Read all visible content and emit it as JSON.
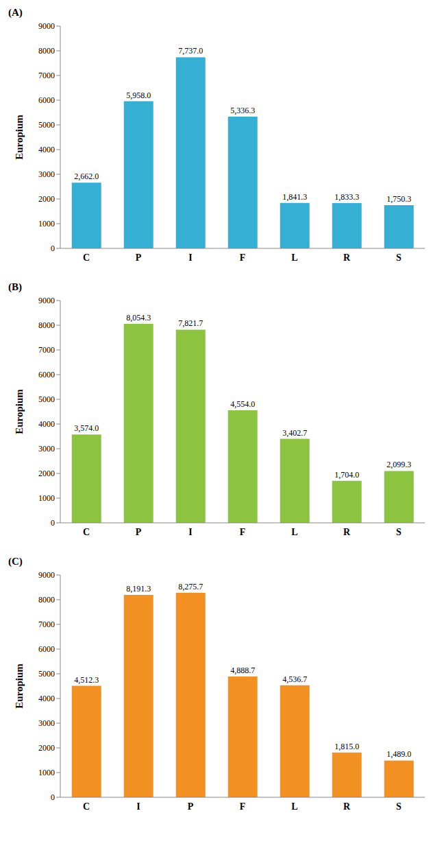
{
  "chart_data": [
    {
      "type": "bar",
      "title": "(A)",
      "y_label": "Europium",
      "categories": [
        "C",
        "P",
        "I",
        "F",
        "L",
        "R",
        "S"
      ],
      "values": [
        2662.0,
        5958.0,
        7737.0,
        5336.3,
        1841.3,
        1833.3,
        1750.3
      ],
      "value_labels": [
        "2,662.0",
        "5,958.0",
        "7,737.0",
        "5,336.3",
        "1,841.3",
        "1,833.3",
        "1,750.3"
      ],
      "color": "#35afd3",
      "ylim": [
        0,
        9000
      ],
      "yticks": [
        0,
        1000,
        2000,
        3000,
        4000,
        5000,
        6000,
        7000,
        8000,
        9000
      ],
      "grid": false,
      "data_labels": true
    },
    {
      "type": "bar",
      "title": "(B)",
      "y_label": "Europium",
      "categories": [
        "C",
        "P",
        "I",
        "F",
        "L",
        "R",
        "S"
      ],
      "values": [
        3574.0,
        8054.3,
        7821.7,
        4554.0,
        3402.7,
        1704.0,
        2099.3
      ],
      "value_labels": [
        "3,574.0",
        "8,054.3",
        "7,821.7",
        "4,554.0",
        "3,402.7",
        "1,704.0",
        "2,099.3"
      ],
      "color": "#8cc440",
      "ylim": [
        0,
        9000
      ],
      "yticks": [
        0,
        1000,
        2000,
        3000,
        4000,
        5000,
        6000,
        7000,
        8000,
        9000
      ],
      "grid": false,
      "data_labels": true
    },
    {
      "type": "bar",
      "title": "(C)",
      "y_label": "Europium",
      "categories": [
        "C",
        "I",
        "P",
        "F",
        "L",
        "R",
        "S"
      ],
      "values": [
        4512.3,
        8191.3,
        8275.7,
        4888.7,
        4536.7,
        1815.0,
        1489.0
      ],
      "value_labels": [
        "4,512.3",
        "8,191.3",
        "8,275.7",
        "4,888.7",
        "4,536.7",
        "1,815.0",
        "1,489.0"
      ],
      "color": "#f39022",
      "ylim": [
        0,
        9000
      ],
      "yticks": [
        0,
        1000,
        2000,
        3000,
        4000,
        5000,
        6000,
        7000,
        8000,
        9000
      ],
      "grid": false,
      "data_labels": true
    }
  ]
}
